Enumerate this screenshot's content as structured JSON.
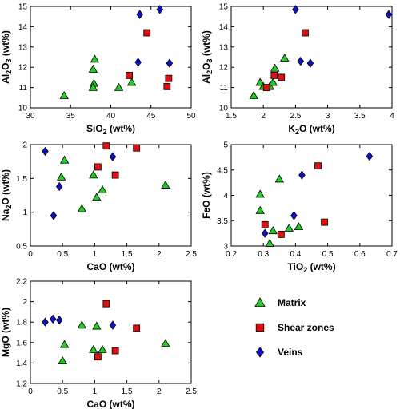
{
  "series_styles": {
    "Matrix": {
      "color": "#22cc22",
      "marker": "triangle"
    },
    "Shear zones": {
      "color": "#dd1111",
      "marker": "square"
    },
    "Veins": {
      "color": "#1111cc",
      "marker": "diamond"
    }
  },
  "legend": {
    "position": "bottom-right",
    "items": [
      "Matrix",
      "Shear zones",
      "Veins"
    ]
  },
  "chart_data": [
    {
      "type": "scatter",
      "xlabel": "SiO2 (wt%)",
      "ylabel": "Al2O3 (wt%)",
      "xlim": [
        30,
        50
      ],
      "ylim": [
        10,
        15
      ],
      "xticks": [
        "30",
        "35",
        "40",
        "45",
        "50"
      ],
      "yticks": [
        "10",
        "11",
        "12",
        "13",
        "14",
        "15"
      ],
      "series": [
        {
          "name": "Matrix",
          "points": [
            [
              34.2,
              10.6
            ],
            [
              37.8,
              11.9
            ],
            [
              38.0,
              12.4
            ],
            [
              37.9,
              11.2
            ],
            [
              37.8,
              11.0
            ],
            [
              41.0,
              11.0
            ],
            [
              42.6,
              11.25
            ]
          ]
        },
        {
          "name": "Shear zones",
          "points": [
            [
              44.5,
              13.7
            ],
            [
              42.3,
              11.6
            ],
            [
              47.0,
              11.05
            ],
            [
              47.2,
              11.45
            ]
          ]
        },
        {
          "name": "Veins",
          "points": [
            [
              43.6,
              14.6
            ],
            [
              46.1,
              14.85
            ],
            [
              43.4,
              12.25
            ],
            [
              47.3,
              12.2
            ]
          ]
        }
      ]
    },
    {
      "type": "scatter",
      "xlabel": "K2O (wt%)",
      "ylabel": "Al2O3 (wt%)",
      "xlim": [
        1.5,
        4
      ],
      "ylim": [
        10,
        15
      ],
      "xticks": [
        "1.5",
        "2",
        "2.5",
        "3",
        "3.5",
        "4"
      ],
      "yticks": [
        "10",
        "11",
        "12",
        "13",
        "14",
        "15"
      ],
      "series": [
        {
          "name": "Matrix",
          "points": [
            [
              1.85,
              10.6
            ],
            [
              1.95,
              11.25
            ],
            [
              2.0,
              11.05
            ],
            [
              2.1,
              11.05
            ],
            [
              2.15,
              11.25
            ],
            [
              2.18,
              11.95
            ],
            [
              2.33,
              12.45
            ]
          ]
        },
        {
          "name": "Shear zones",
          "points": [
            [
              2.05,
              11.0
            ],
            [
              2.17,
              11.6
            ],
            [
              2.28,
              11.5
            ],
            [
              2.65,
              13.7
            ]
          ]
        },
        {
          "name": "Veins",
          "points": [
            [
              2.5,
              14.85
            ],
            [
              3.95,
              14.6
            ],
            [
              2.58,
              12.3
            ],
            [
              2.73,
              12.2
            ]
          ]
        }
      ]
    },
    {
      "type": "scatter",
      "xlabel": "CaO (wt%)",
      "ylabel": "Na2O (wt%)",
      "xlim": [
        0,
        2.5
      ],
      "ylim": [
        0.5,
        2
      ],
      "xticks": [
        "0",
        "0.5",
        "1",
        "1.5",
        "2",
        "2.5"
      ],
      "yticks": [
        "0.5",
        "1",
        "1.5",
        "2"
      ],
      "series": [
        {
          "name": "Matrix",
          "points": [
            [
              0.53,
              1.77
            ],
            [
              0.48,
              1.52
            ],
            [
              0.8,
              1.05
            ],
            [
              0.98,
              1.55
            ],
            [
              1.03,
              1.22
            ],
            [
              1.12,
              1.33
            ],
            [
              2.1,
              1.4
            ]
          ]
        },
        {
          "name": "Shear zones",
          "points": [
            [
              1.05,
              1.67
            ],
            [
              1.18,
              1.98
            ],
            [
              1.32,
              1.55
            ],
            [
              1.65,
              1.95
            ]
          ]
        },
        {
          "name": "Veins",
          "points": [
            [
              0.23,
              1.9
            ],
            [
              0.36,
              0.95
            ],
            [
              0.45,
              1.38
            ],
            [
              1.28,
              1.82
            ]
          ]
        }
      ]
    },
    {
      "type": "scatter",
      "xlabel": "TiO2 (wt%)",
      "ylabel": "FeO (wt%)",
      "xlim": [
        0.2,
        0.7
      ],
      "ylim": [
        3,
        5
      ],
      "xticks": [
        "0.2",
        "0.3",
        "0.4",
        "0.5",
        "0.6",
        "0.7"
      ],
      "yticks": [
        "3",
        "3.5",
        "4",
        "4.5",
        "5"
      ],
      "series": [
        {
          "name": "Matrix",
          "points": [
            [
              0.29,
              4.02
            ],
            [
              0.29,
              3.7
            ],
            [
              0.32,
              3.05
            ],
            [
              0.33,
              3.3
            ],
            [
              0.35,
              4.32
            ],
            [
              0.38,
              3.35
            ],
            [
              0.41,
              3.38
            ]
          ]
        },
        {
          "name": "Shear zones",
          "points": [
            [
              0.305,
              3.42
            ],
            [
              0.355,
              3.23
            ],
            [
              0.47,
              4.58
            ],
            [
              0.49,
              3.47
            ]
          ]
        },
        {
          "name": "Veins",
          "points": [
            [
              0.305,
              3.25
            ],
            [
              0.395,
              3.6
            ],
            [
              0.42,
              4.4
            ],
            [
              0.63,
              4.77
            ]
          ]
        }
      ]
    },
    {
      "type": "scatter",
      "xlabel": "CaO (wt%)",
      "ylabel": "MgO (wt%)",
      "xlim": [
        0,
        2.5
      ],
      "ylim": [
        1.2,
        2.2
      ],
      "xticks": [
        "0",
        "0.5",
        "1",
        "1.5",
        "2",
        "2.5"
      ],
      "yticks": [
        "1.2",
        "1.4",
        "1.6",
        "1.8",
        "2",
        "2.2"
      ],
      "series": [
        {
          "name": "Matrix",
          "points": [
            [
              0.53,
              1.58
            ],
            [
              0.5,
              1.42
            ],
            [
              0.8,
              1.77
            ],
            [
              0.98,
              1.53
            ],
            [
              1.03,
              1.76
            ],
            [
              1.12,
              1.53
            ],
            [
              2.1,
              1.59
            ]
          ]
        },
        {
          "name": "Shear zones",
          "points": [
            [
              1.05,
              1.46
            ],
            [
              1.18,
              1.98
            ],
            [
              1.32,
              1.52
            ],
            [
              1.65,
              1.74
            ]
          ]
        },
        {
          "name": "Veins",
          "points": [
            [
              0.23,
              1.8
            ],
            [
              0.35,
              1.83
            ],
            [
              0.45,
              1.82
            ],
            [
              1.28,
              1.77
            ]
          ]
        }
      ]
    }
  ]
}
